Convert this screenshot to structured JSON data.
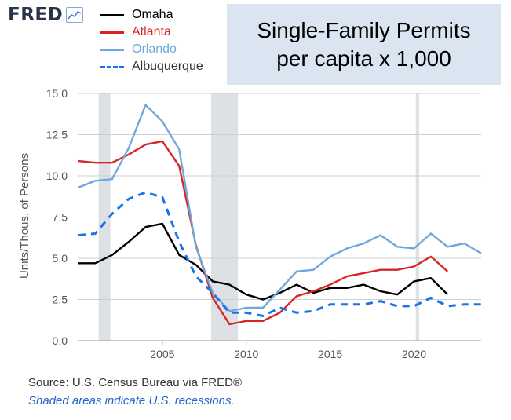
{
  "logo": {
    "text": "FRED",
    "icon": "line-chart-icon"
  },
  "title_lines": [
    "Single-Family Permits",
    "per capita x 1,000"
  ],
  "source": "Source: U.S. Census Bureau via FRED®",
  "shading_note": "Shaded areas indicate U.S. recessions.",
  "colors": {
    "background": "#ffffff",
    "title_box": "#dbe5f1",
    "recession": "#dde1e6",
    "grid": "#cfcfcf"
  },
  "chart_data": {
    "type": "line",
    "title": "Single-Family Permits per capita x 1,000",
    "xlabel": "",
    "ylabel": "Units/Thous. of Persons",
    "xlim": [
      2000,
      2024
    ],
    "ylim": [
      0,
      15
    ],
    "xticks": [
      2005,
      2010,
      2015,
      2020
    ],
    "yticks": [
      "0.0",
      "2.5",
      "5.0",
      "7.5",
      "10.0",
      "12.5",
      "15.0"
    ],
    "grid": true,
    "legend_position": "top-left",
    "recessions": [
      [
        2001.2,
        2001.9
      ],
      [
        2007.9,
        2009.5
      ],
      [
        2020.1,
        2020.3
      ]
    ],
    "series": [
      {
        "name": "Omaha",
        "color": "#000000",
        "dash": "solid",
        "x": [
          2000,
          2001,
          2002,
          2003,
          2004,
          2005,
          2006,
          2007,
          2008,
          2009,
          2010,
          2011,
          2012,
          2013,
          2014,
          2015,
          2016,
          2017,
          2018,
          2019,
          2020,
          2021,
          2022
        ],
        "y": [
          4.7,
          4.7,
          5.2,
          6.0,
          6.9,
          7.1,
          5.2,
          4.6,
          3.6,
          3.4,
          2.8,
          2.5,
          2.9,
          3.4,
          2.9,
          3.2,
          3.2,
          3.4,
          3.0,
          2.8,
          3.6,
          3.8,
          2.8
        ]
      },
      {
        "name": "Atlanta",
        "color": "#d62728",
        "dash": "solid",
        "x": [
          2000,
          2001,
          2002,
          2003,
          2004,
          2005,
          2006,
          2007,
          2008,
          2009,
          2010,
          2011,
          2012,
          2013,
          2014,
          2015,
          2016,
          2017,
          2018,
          2019,
          2020,
          2021,
          2022
        ],
        "y": [
          10.9,
          10.8,
          10.8,
          11.3,
          11.9,
          12.1,
          10.6,
          5.8,
          2.6,
          1.0,
          1.2,
          1.2,
          1.7,
          2.7,
          3.0,
          3.4,
          3.9,
          4.1,
          4.3,
          4.3,
          4.5,
          5.1,
          4.2
        ]
      },
      {
        "name": "Orlando",
        "color": "#6fa8dc",
        "dash": "solid",
        "x": [
          2000,
          2001,
          2002,
          2003,
          2004,
          2005,
          2006,
          2007,
          2008,
          2009,
          2010,
          2011,
          2012,
          2013,
          2014,
          2015,
          2016,
          2017,
          2018,
          2019,
          2020,
          2021,
          2022,
          2023,
          2024
        ],
        "y": [
          9.3,
          9.7,
          9.8,
          11.7,
          14.3,
          13.3,
          11.6,
          5.7,
          2.9,
          1.8,
          2.0,
          2.0,
          3.1,
          4.2,
          4.3,
          5.1,
          5.6,
          5.9,
          6.4,
          5.7,
          5.6,
          6.5,
          5.7,
          5.9,
          5.3
        ]
      },
      {
        "name": "Albuquerque",
        "color": "#1a73e8",
        "dash": "dashed",
        "x": [
          2000,
          2001,
          2002,
          2003,
          2004,
          2005,
          2006,
          2007,
          2008,
          2009,
          2010,
          2011,
          2012,
          2013,
          2014,
          2015,
          2016,
          2017,
          2018,
          2019,
          2020,
          2021,
          2022,
          2023,
          2024
        ],
        "y": [
          6.4,
          6.5,
          7.7,
          8.6,
          9.0,
          8.7,
          6.0,
          3.9,
          2.9,
          1.7,
          1.7,
          1.5,
          2.0,
          1.7,
          1.8,
          2.2,
          2.2,
          2.2,
          2.4,
          2.1,
          2.1,
          2.6,
          2.1,
          2.2,
          2.2
        ]
      }
    ]
  }
}
